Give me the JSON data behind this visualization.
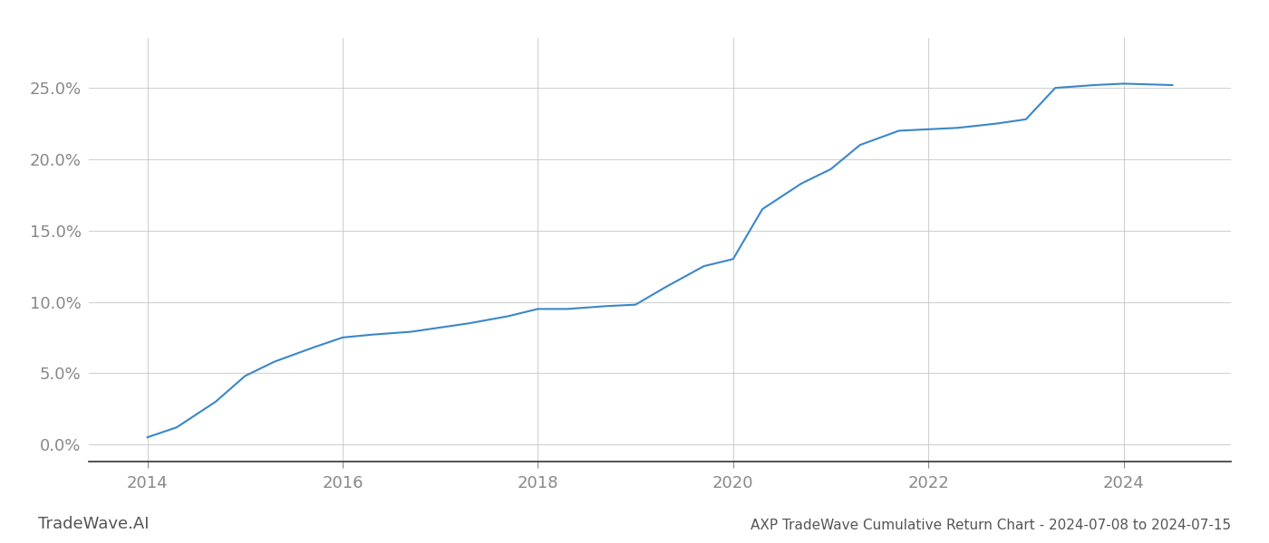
{
  "title": "AXP TradeWave Cumulative Return Chart - 2024-07-08 to 2024-07-15",
  "watermark": "TradeWave.AI",
  "line_color": "#3a87c8",
  "background_color": "#ffffff",
  "grid_color": "#cccccc",
  "x_values": [
    2014.0,
    2014.3,
    2014.7,
    2015.0,
    2015.3,
    2015.7,
    2016.0,
    2016.3,
    2016.7,
    2017.0,
    2017.3,
    2017.7,
    2018.0,
    2018.3,
    2018.7,
    2019.0,
    2019.3,
    2019.7,
    2020.0,
    2020.3,
    2020.7,
    2021.0,
    2021.3,
    2021.7,
    2022.0,
    2022.3,
    2022.7,
    2023.0,
    2023.3,
    2023.7,
    2024.0,
    2024.5
  ],
  "y_values": [
    0.005,
    0.012,
    0.03,
    0.048,
    0.058,
    0.068,
    0.075,
    0.077,
    0.079,
    0.082,
    0.085,
    0.09,
    0.095,
    0.095,
    0.097,
    0.098,
    0.11,
    0.125,
    0.13,
    0.165,
    0.183,
    0.193,
    0.21,
    0.22,
    0.221,
    0.222,
    0.225,
    0.228,
    0.25,
    0.252,
    0.253,
    0.252
  ],
  "xlim": [
    2013.4,
    2025.1
  ],
  "ylim": [
    -0.012,
    0.285
  ],
  "yticks": [
    0.0,
    0.05,
    0.1,
    0.15,
    0.2,
    0.25
  ],
  "ytick_labels": [
    "0.0%",
    "5.0%",
    "10.0%",
    "15.0%",
    "20.0%",
    "25.0%"
  ],
  "xticks": [
    2014,
    2016,
    2018,
    2020,
    2022,
    2024
  ],
  "xtick_labels": [
    "2014",
    "2016",
    "2018",
    "2020",
    "2022",
    "2024"
  ],
  "line_width": 1.5,
  "title_fontsize": 11,
  "tick_fontsize": 13,
  "watermark_fontsize": 13
}
